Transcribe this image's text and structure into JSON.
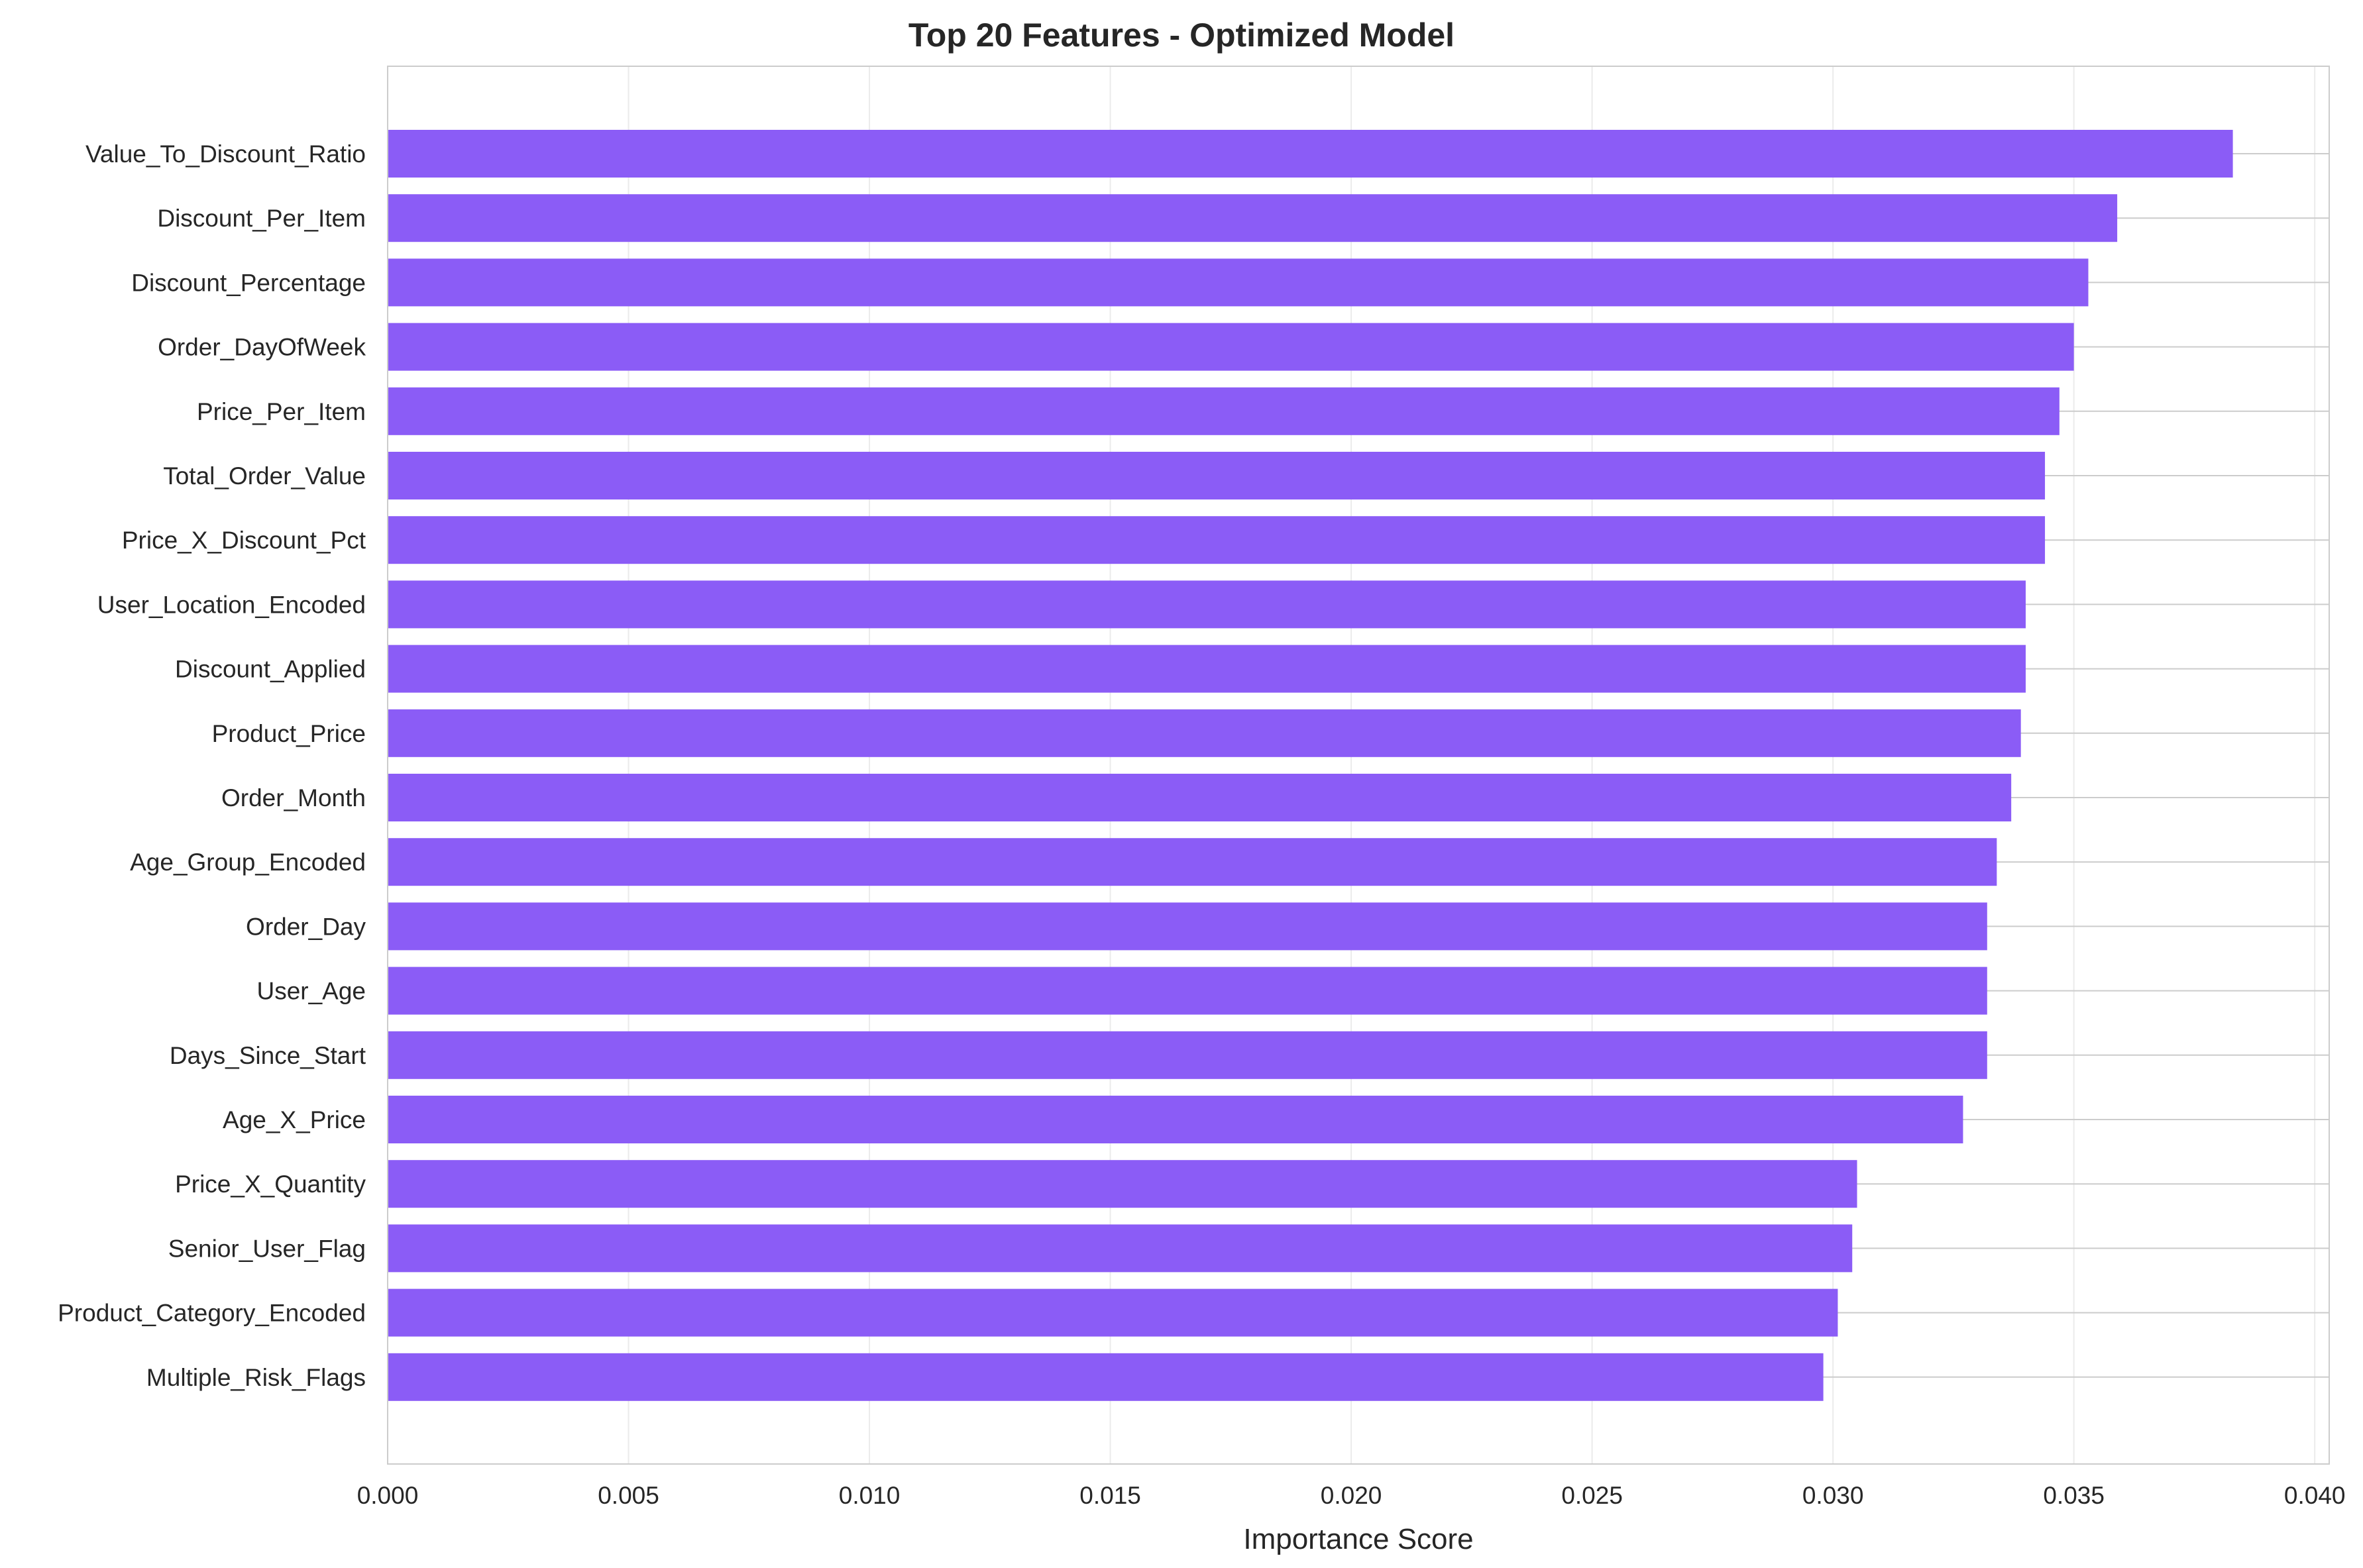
{
  "chart_data": {
    "type": "bar",
    "orientation": "horizontal",
    "title": "Top 20 Features - Optimized Model",
    "xlabel": "Importance Score",
    "ylabel": "",
    "xlim": [
      0,
      0.0403
    ],
    "xticks": [
      0.0,
      0.005,
      0.01,
      0.015,
      0.02,
      0.025,
      0.03,
      0.035,
      0.04
    ],
    "xtick_labels": [
      "0.000",
      "0.005",
      "0.010",
      "0.015",
      "0.020",
      "0.025",
      "0.030",
      "0.035",
      "0.040"
    ],
    "grid": true,
    "bar_color": "#8b5cf6",
    "categories": [
      "Value_To_Discount_Ratio",
      "Discount_Per_Item",
      "Discount_Percentage",
      "Order_DayOfWeek",
      "Price_Per_Item",
      "Total_Order_Value",
      "Price_X_Discount_Pct",
      "User_Location_Encoded",
      "Discount_Applied",
      "Product_Price",
      "Order_Month",
      "Age_Group_Encoded",
      "Order_Day",
      "User_Age",
      "Days_Since_Start",
      "Age_X_Price",
      "Price_X_Quantity",
      "Senior_User_Flag",
      "Product_Category_Encoded",
      "Multiple_Risk_Flags"
    ],
    "values": [
      0.0383,
      0.0359,
      0.0353,
      0.035,
      0.0347,
      0.0344,
      0.0344,
      0.034,
      0.034,
      0.0339,
      0.0337,
      0.0334,
      0.0332,
      0.0332,
      0.0332,
      0.0327,
      0.0305,
      0.0304,
      0.0301,
      0.0298
    ]
  }
}
